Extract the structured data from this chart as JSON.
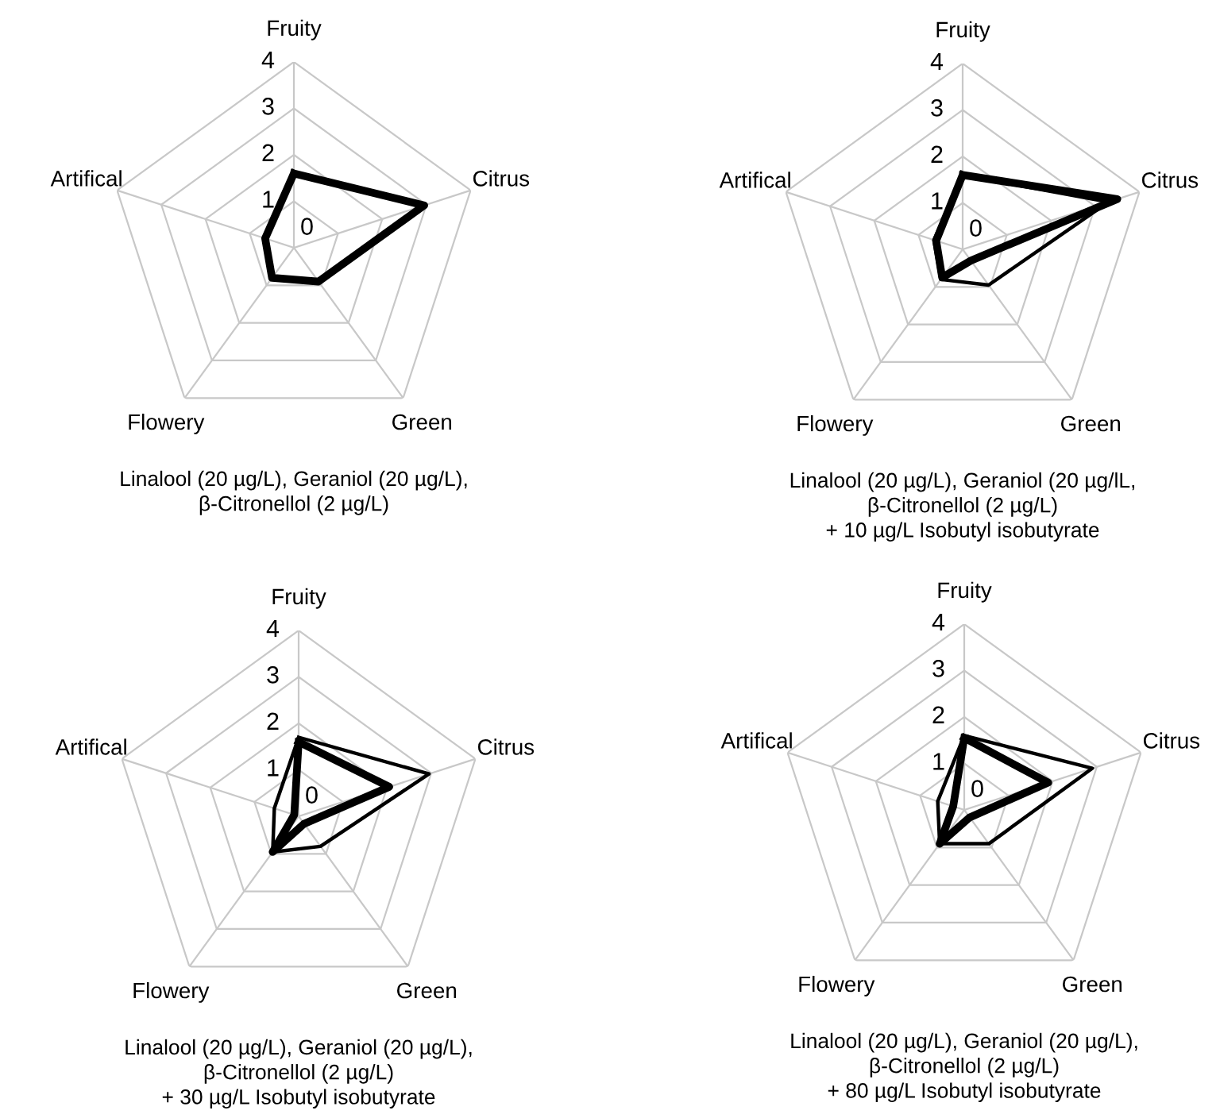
{
  "chart_data": [
    {
      "type": "radar",
      "title": "Linalool (20 µg/L), Geraniol (20 µg/L),\nβ-Citronellol (2 µg/L)",
      "categories": [
        "Fruity",
        "Citrus",
        "Green",
        "Flowery",
        "Artifical"
      ],
      "ylim": [
        0,
        4
      ],
      "yticks": [
        0,
        1,
        2,
        3,
        4
      ],
      "grid": true,
      "series": [
        {
          "color": "#000000",
          "values": [
            1.6,
            2.95,
            0.9,
            0.8,
            0.65
          ]
        }
      ]
    },
    {
      "type": "radar",
      "title": "Linalool (20 µg/L), Geraniol (20 µg/lL,\nβ-Citronellol (2 µg/L)\n+ 10 µg/L Isobutyl isobutyrate",
      "categories": [
        "Fruity",
        "Citrus",
        "Green",
        "Flowery",
        "Artifical"
      ],
      "ylim": [
        0,
        4
      ],
      "yticks": [
        0,
        1,
        2,
        3,
        4
      ],
      "grid": true,
      "series": [
        {
          "color": "#000000",
          "values": [
            1.6,
            3.3,
            0.95,
            0.8,
            0.65
          ]
        },
        {
          "color": "#000000",
          "values": [
            1.6,
            3.5,
            0.3,
            0.75,
            0.6
          ]
        }
      ]
    },
    {
      "type": "radar",
      "title": "Linalool (20 µg/L), Geraniol (20 µg/L),\nβ-Citronellol (2 µg/L)\n+ 30 µg/L Isobutyl isobutyrate",
      "categories": [
        "Fruity",
        "Citrus",
        "Green",
        "Flowery",
        "Artifical"
      ],
      "ylim": [
        0,
        4
      ],
      "yticks": [
        0,
        1,
        2,
        3,
        4
      ],
      "grid": true,
      "series": [
        {
          "color": "#000000",
          "values": [
            1.7,
            2.95,
            0.8,
            0.95,
            0.55
          ]
        },
        {
          "color": "#000000",
          "values": [
            1.6,
            2.05,
            0.2,
            0.95,
            0.1
          ]
        }
      ]
    },
    {
      "type": "radar",
      "title": "Linalool (20 µg/L), Geraniol (20 µg/L),\nβ-Citronellol (2 µg/L)\n+ 80 µg/L Isobutyl isobutyrate",
      "categories": [
        "Fruity",
        "Citrus",
        "Green",
        "Flowery",
        "Artifical"
      ],
      "ylim": [
        0,
        4
      ],
      "yticks": [
        0,
        1,
        2,
        3,
        4
      ],
      "grid": true,
      "series": [
        {
          "color": "#000000",
          "values": [
            1.6,
            2.9,
            0.9,
            0.9,
            0.6
          ]
        },
        {
          "color": "#000000",
          "values": [
            1.55,
            1.9,
            0.2,
            0.9,
            0.25
          ]
        }
      ]
    }
  ]
}
